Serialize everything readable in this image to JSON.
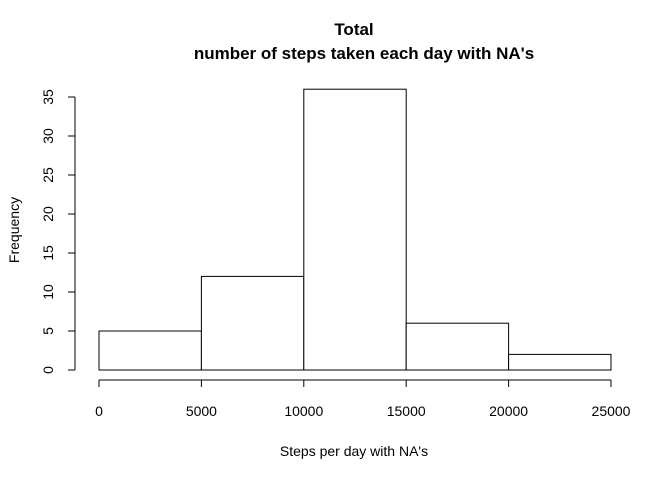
{
  "chart_data": {
    "type": "bar",
    "title": "Total",
    "subtitle": "number of steps taken each day with NA's",
    "xlabel": "Steps per day with NA's",
    "ylabel": "Frequency",
    "bins": [
      {
        "from": 0,
        "to": 5000,
        "count": 5
      },
      {
        "from": 5000,
        "to": 10000,
        "count": 12
      },
      {
        "from": 10000,
        "to": 15000,
        "count": 36
      },
      {
        "from": 15000,
        "to": 20000,
        "count": 6
      },
      {
        "from": 20000,
        "to": 25000,
        "count": 2
      }
    ],
    "xlim": [
      0,
      25000
    ],
    "ylim": [
      0,
      36
    ],
    "x_ticks": [
      "0",
      "5000",
      "10000",
      "15000",
      "20000",
      "25000"
    ],
    "y_ticks": [
      "0",
      "5",
      "10",
      "15",
      "20",
      "25",
      "30",
      "35"
    ],
    "grid": false,
    "bar_fill": "#ffffff",
    "bar_stroke": "#000000"
  }
}
